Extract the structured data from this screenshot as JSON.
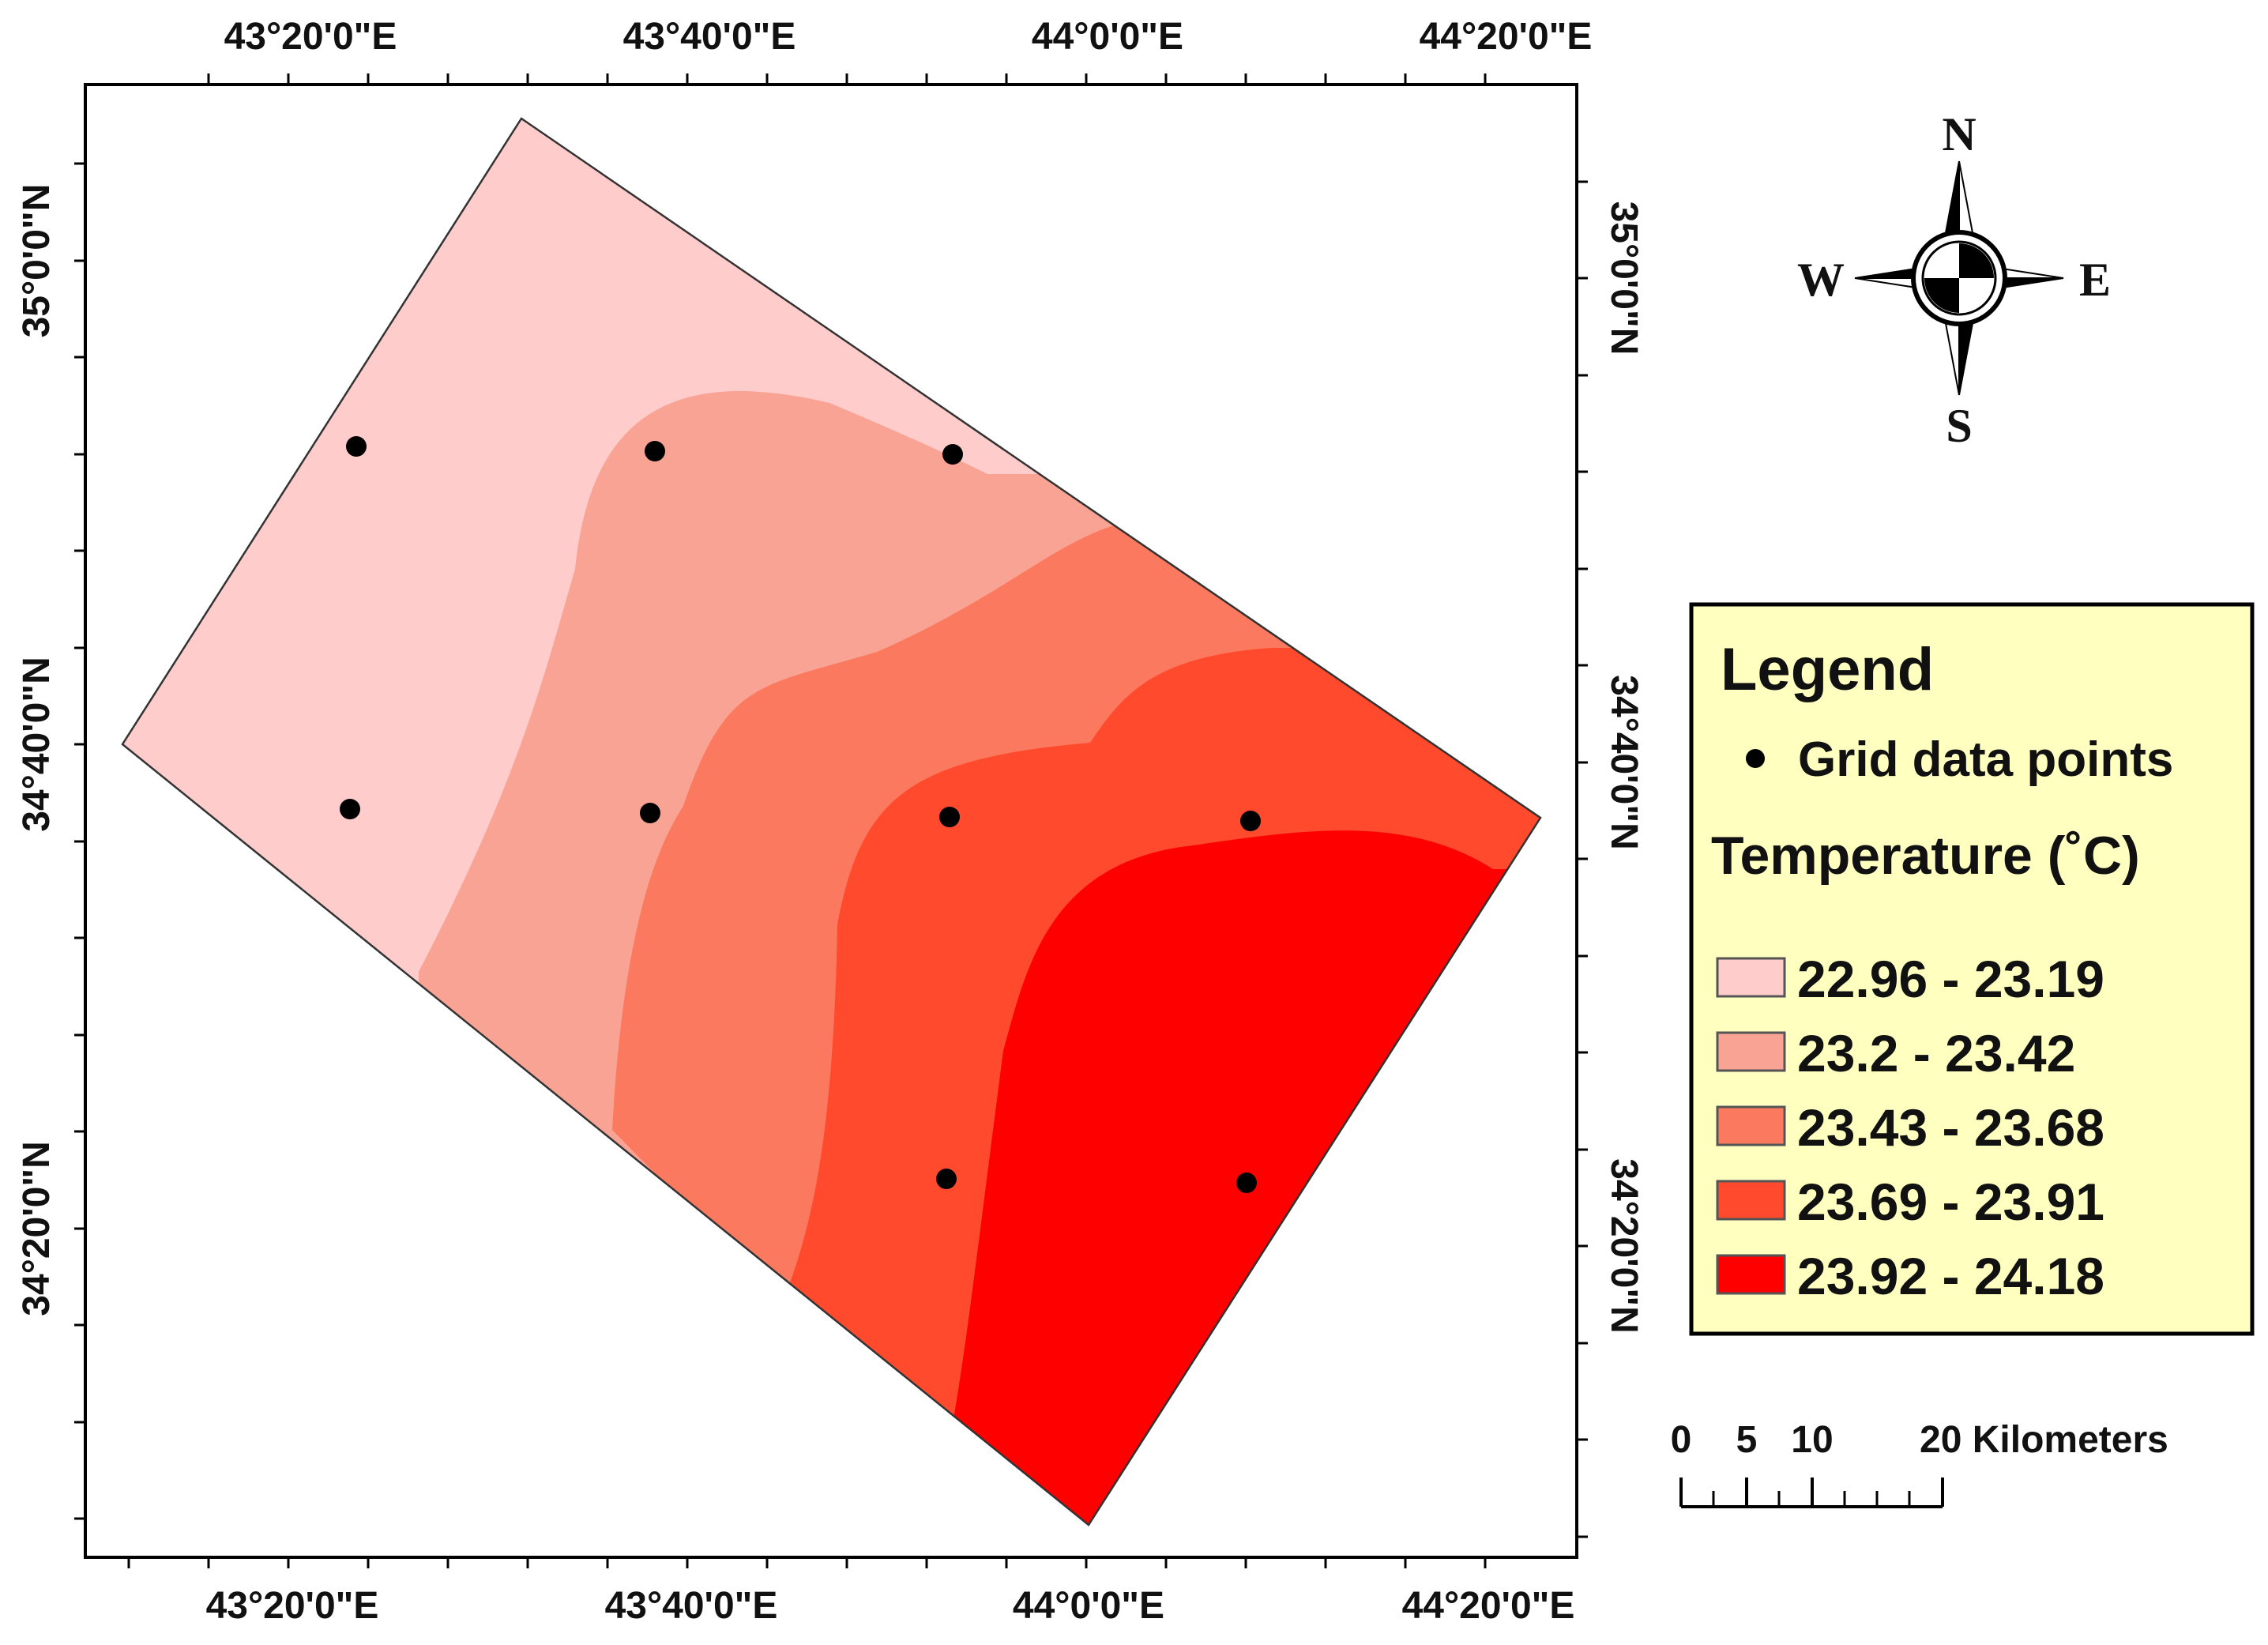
{
  "map": {
    "top_longitude_labels": [
      "43°20'0\"E",
      "43°40'0\"E",
      "44°0'0\"E",
      "44°20'0\"E"
    ],
    "bottom_longitude_labels": [
      "43°20'0\"E",
      "43°40'0\"E",
      "44°0'0\"E",
      "44°20'0\"E"
    ],
    "left_latitude_labels": [
      "35°0'0\"N",
      "34°40'0\"N",
      "34°20'0\"N"
    ],
    "right_latitude_labels": [
      "35°0'0\"N",
      "34°40'0\"N",
      "34°20'0\"N"
    ],
    "data_point_count": 9
  },
  "compass": {
    "north": "N",
    "south": "S",
    "east": "E",
    "west": "W"
  },
  "legend": {
    "title": "Legend",
    "points_label": "Grid data points",
    "temperature_label": "Temperature (˚C)",
    "classes": [
      {
        "label": "22.96 - 23.19",
        "color": "#FFCCCC"
      },
      {
        "label": "23.2 - 23.42",
        "color": "#F9A395"
      },
      {
        "label": "23.43 - 23.68",
        "color": "#FB7A5F"
      },
      {
        "label": "23.69 - 23.91",
        "color": "#FF4A2D"
      },
      {
        "label": "23.92 - 24.18",
        "color": "#FF0000"
      }
    ]
  },
  "scale_bar": {
    "labels": [
      "0",
      "5",
      "10"
    ],
    "end_label": "20 Kilometers"
  },
  "colors": {
    "legend_background": "#FFFFC0",
    "point_color": "#000000"
  }
}
